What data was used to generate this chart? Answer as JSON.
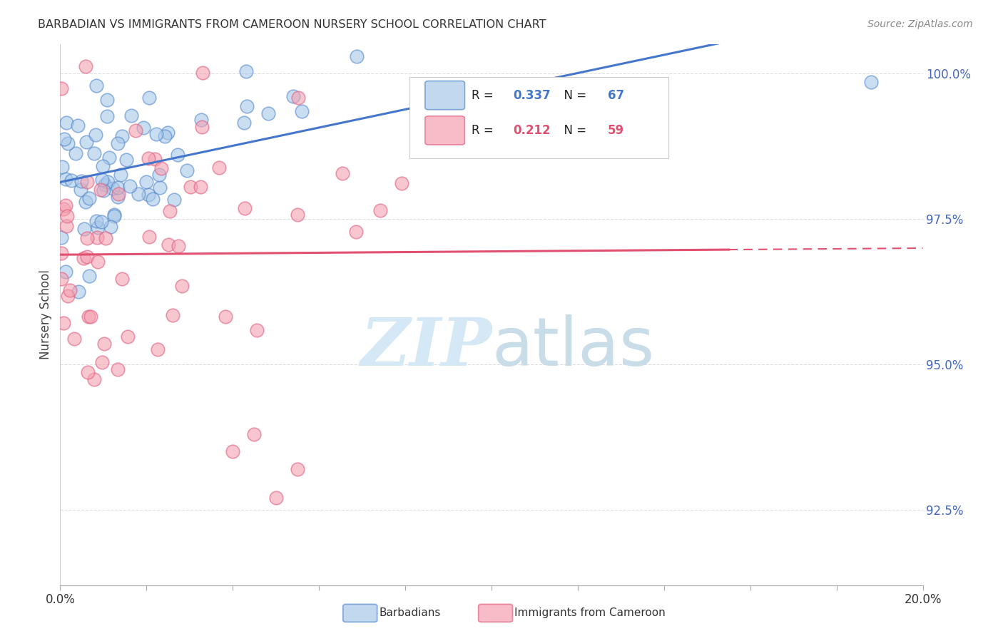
{
  "title": "BARBADIAN VS IMMIGRANTS FROM CAMEROON NURSERY SCHOOL CORRELATION CHART",
  "source": "Source: ZipAtlas.com",
  "ylabel": "Nursery School",
  "yticks": [
    92.5,
    95.0,
    97.5,
    100.0
  ],
  "ytick_labels": [
    "92.5%",
    "95.0%",
    "97.5%",
    "100.0%"
  ],
  "xmin": 0.0,
  "xmax": 0.2,
  "ymin": 91.2,
  "ymax": 100.5,
  "blue_R": 0.337,
  "blue_N": 67,
  "pink_R": 0.212,
  "pink_N": 59,
  "blue_color": "#a8c8e8",
  "pink_color": "#f4a0b0",
  "blue_edge_color": "#5588cc",
  "pink_edge_color": "#e06080",
  "blue_line_color": "#4477cc",
  "pink_line_color": "#e05070",
  "legend_label_blue": "Barbadians",
  "legend_label_pink": "Immigrants from Cameroon",
  "watermark_color": "#d5e8f5",
  "grid_color": "#dddddd",
  "tick_label_color": "#4466bb"
}
